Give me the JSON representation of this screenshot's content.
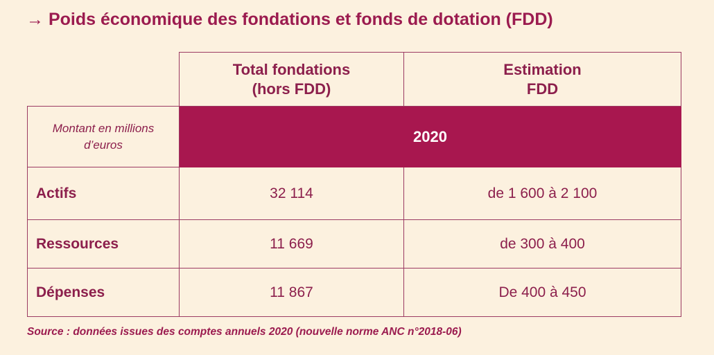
{
  "title": "→ Poids économique des fondations et fonds de dotation (FDD)",
  "table": {
    "columns": [
      {
        "line1": "Total fondations",
        "line2": "(hors FDD)"
      },
      {
        "line1": "Estimation",
        "line2": "FDD"
      }
    ],
    "unit_line1": "Montant en millions",
    "unit_line2": "d’euros",
    "year": "2020",
    "rows": [
      {
        "label": "Actifs",
        "total": "32 114",
        "fdd": "de 1 600 à 2 100"
      },
      {
        "label": "Ressources",
        "total": "11 669",
        "fdd": "de 300 à 400"
      },
      {
        "label": "Dépenses",
        "total": "11 867",
        "fdd": "De 400 à 450"
      }
    ]
  },
  "source": "Source : données issues des comptes annuels 2020 (nouvelle norme ANC n°2018-06)",
  "colors": {
    "accent": "#a8174f",
    "text": "#8c1f4c",
    "background": "#fcf1df"
  }
}
